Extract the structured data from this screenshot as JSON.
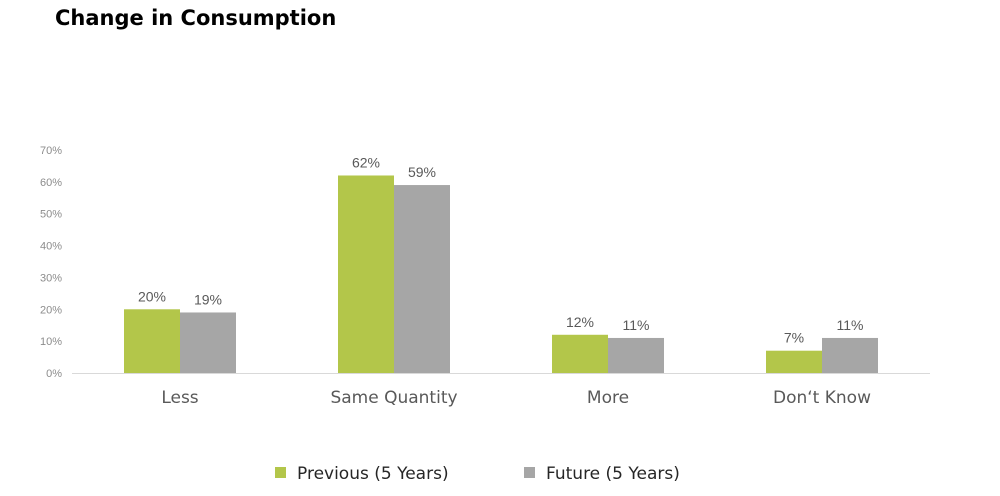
{
  "chart_data": {
    "type": "bar",
    "title": "Change in Consumption",
    "categories": [
      "Less",
      "Same Quantity",
      "More",
      "Don‘t Know"
    ],
    "series": [
      {
        "name": "Previous (5 Years)",
        "values": [
          20,
          62,
          12,
          7
        ],
        "labels": [
          "20%",
          "62%",
          "12%",
          "7%"
        ],
        "color": "#b3c64a"
      },
      {
        "name": "Future (5 Years)",
        "values": [
          19,
          59,
          11,
          11
        ],
        "labels": [
          "19%",
          "59%",
          "11%",
          "11%"
        ],
        "color": "#a6a6a6"
      }
    ],
    "ylim": [
      0,
      70
    ],
    "yticks": [
      "0%",
      "10%",
      "20%",
      "30%",
      "40%",
      "50%",
      "60%",
      "70%"
    ],
    "grid": false,
    "legend_position": "bottom"
  }
}
